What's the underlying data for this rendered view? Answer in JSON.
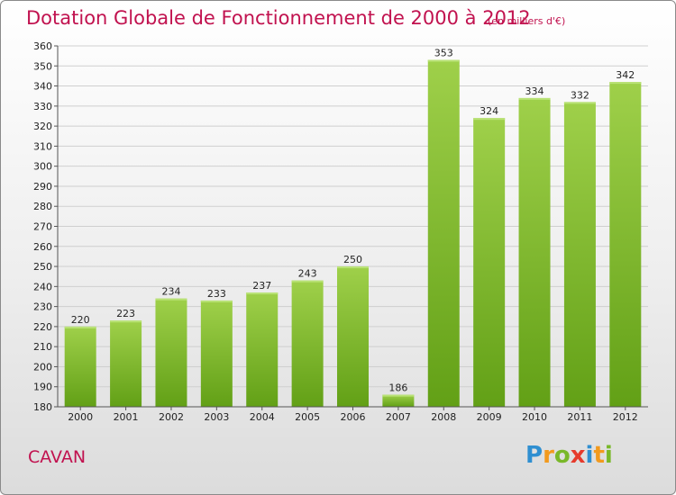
{
  "title": "Dotation Globale de Fonctionnement de 2000 à 2012",
  "unit": "(en milliers d'€)",
  "commune": "CAVAN",
  "logo": {
    "letters": [
      {
        "ch": "P",
        "color": "#2f8fd1"
      },
      {
        "ch": "r",
        "color": "#f29a1e"
      },
      {
        "ch": "o",
        "color": "#79b829"
      },
      {
        "ch": "x",
        "color": "#e63a2c"
      },
      {
        "ch": "i",
        "color": "#2f8fd1"
      },
      {
        "ch": "t",
        "color": "#f29a1e"
      },
      {
        "ch": "i",
        "color": "#79b829"
      }
    ]
  },
  "colors": {
    "bar_top": "#9fd04a",
    "bar_bottom": "#62a016",
    "title": "#c1124f"
  },
  "chart_data": {
    "type": "bar",
    "categories": [
      "2000",
      "2001",
      "2002",
      "2003",
      "2004",
      "2005",
      "2006",
      "2007",
      "2008",
      "2009",
      "2010",
      "2011",
      "2012"
    ],
    "values": [
      220,
      223,
      234,
      233,
      237,
      243,
      250,
      186,
      353,
      324,
      334,
      332,
      342
    ],
    "ylim": [
      180,
      360
    ],
    "yticks": [
      180,
      190,
      200,
      210,
      220,
      230,
      240,
      250,
      260,
      270,
      280,
      290,
      300,
      310,
      320,
      330,
      340,
      350,
      360
    ],
    "grid": true
  }
}
